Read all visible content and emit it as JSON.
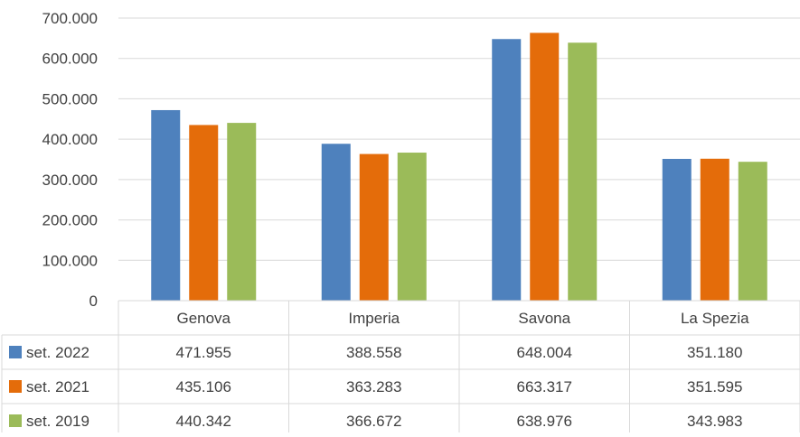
{
  "chart_data": {
    "type": "bar",
    "categories": [
      "Genova",
      "Imperia",
      "Savona",
      "La Spezia"
    ],
    "series": [
      {
        "name": "set. 2022",
        "color": "#4E81BD",
        "values": [
          471955,
          388558,
          648004,
          351180
        ],
        "labels": [
          "471.955",
          "388.558",
          "648.004",
          "351.180"
        ]
      },
      {
        "name": "set. 2021",
        "color": "#E46C0A",
        "values": [
          435106,
          363283,
          663317,
          351595
        ],
        "labels": [
          "435.106",
          "363.283",
          "663.317",
          "351.595"
        ]
      },
      {
        "name": "set. 2019",
        "color": "#9BBB59",
        "values": [
          440342,
          366672,
          638976,
          343983
        ],
        "labels": [
          "440.342",
          "366.672",
          "638.976",
          "343.983"
        ]
      }
    ],
    "yticks": [
      0,
      100000,
      200000,
      300000,
      400000,
      500000,
      600000,
      700000
    ],
    "ytick_labels": [
      "0",
      "100.000",
      "200.000",
      "300.000",
      "400.000",
      "500.000",
      "600.000",
      "700.000"
    ],
    "ylim": [
      0,
      700000
    ],
    "grid": true,
    "legend": "data-table"
  }
}
